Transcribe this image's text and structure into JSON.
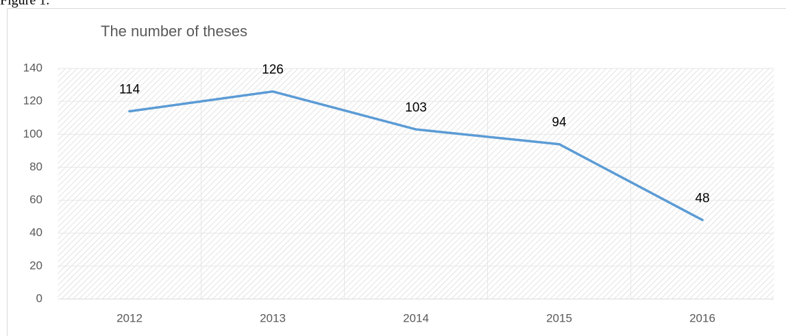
{
  "caption": "Figure 1.",
  "chart_data": {
    "type": "line",
    "title": "The number of theses",
    "categories": [
      "2012",
      "2013",
      "2014",
      "2015",
      "2016"
    ],
    "series": [
      {
        "name": "The number of theses",
        "color": "#5b9bd5",
        "values": [
          114,
          126,
          103,
          94,
          48
        ]
      }
    ],
    "ylim": [
      0,
      140
    ],
    "yticks": [
      0,
      20,
      40,
      60,
      80,
      100,
      120,
      140
    ],
    "grid": true
  }
}
